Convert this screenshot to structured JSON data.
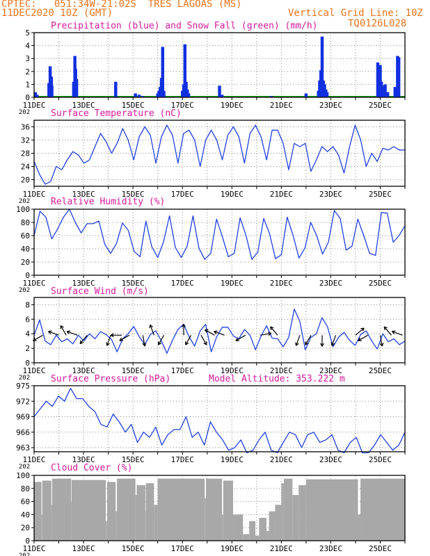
{
  "header": {
    "line1": "CPTEC:   051:34W-21:02S  TRES LAGOAS (MS)",
    "line2": "11DEC2020 10Z (GMT)",
    "grid_note": "Vertical Grid Line: 10Z",
    "model_code": "TQ0126L028"
  },
  "colors": {
    "header": "#e8731a",
    "titles": "#d61a9a",
    "precip": "#1030e0",
    "snow": "#10a010",
    "line": "#2040e0",
    "cloud": "#a8a8a8",
    "arrow": "#000000"
  },
  "x_axis": {
    "ticks": [
      "11DEC",
      "13DEC",
      "15DEC",
      "17DEC",
      "19DEC",
      "21DEC",
      "23DEC",
      "25DEC"
    ],
    "year_fragment": "202"
  },
  "chart_data": [
    {
      "type": "bar",
      "title": "Precipitation (blue) and Snow Fall (green) (mm/h)",
      "ylim": [
        0,
        5
      ],
      "yticks": [
        "0",
        "1",
        "2",
        "3",
        "4",
        "5"
      ],
      "x_unit": "days since 11DEC 00Z",
      "series": [
        {
          "name": "Precipitation",
          "color": "#1030e0",
          "points": [
            [
              0.05,
              0.4
            ],
            [
              0.12,
              0.2
            ],
            [
              0.6,
              1.1
            ],
            [
              0.65,
              2.4
            ],
            [
              0.7,
              1.6
            ],
            [
              0.72,
              0.9
            ],
            [
              1.6,
              1.2
            ],
            [
              1.65,
              3.2
            ],
            [
              1.68,
              2.2
            ],
            [
              1.72,
              1.4
            ],
            [
              3.3,
              1.2
            ],
            [
              4.1,
              0.3
            ],
            [
              4.25,
              0.2
            ],
            [
              4.4,
              0.1
            ],
            [
              5.0,
              0.3
            ],
            [
              5.05,
              0.5
            ],
            [
              5.1,
              0.8
            ],
            [
              5.15,
              1.5
            ],
            [
              5.2,
              3.9
            ],
            [
              5.25,
              0.5
            ],
            [
              6.0,
              0.5
            ],
            [
              6.05,
              1.0
            ],
            [
              6.1,
              4.1
            ],
            [
              6.15,
              1.2
            ],
            [
              6.2,
              0.6
            ],
            [
              6.25,
              0.3
            ],
            [
              7.5,
              0.9
            ],
            [
              7.6,
              0.2
            ],
            [
              9.6,
              0.1
            ],
            [
              11.0,
              0.3
            ],
            [
              11.5,
              0.5
            ],
            [
              11.55,
              1.3
            ],
            [
              11.6,
              2.1
            ],
            [
              11.65,
              4.7
            ],
            [
              11.7,
              1.3
            ],
            [
              11.75,
              1.0
            ],
            [
              11.8,
              0.6
            ],
            [
              11.85,
              0.4
            ],
            [
              13.9,
              2.7
            ],
            [
              13.95,
              1.1
            ],
            [
              14.0,
              2.5
            ],
            [
              14.05,
              1.2
            ],
            [
              14.1,
              0.9
            ],
            [
              14.15,
              0.7
            ],
            [
              14.2,
              1.0
            ],
            [
              14.3,
              0.4
            ],
            [
              14.6,
              0.8
            ],
            [
              14.7,
              3.2
            ],
            [
              14.75,
              3.1
            ]
          ]
        },
        {
          "name": "Snow Fall",
          "color": "#10a010",
          "values": [
            0
          ]
        }
      ]
    },
    {
      "type": "line",
      "title": "Surface Temperature (nC)",
      "ylim": [
        18,
        38
      ],
      "yticks": [
        "20",
        "24",
        "28",
        "32",
        "36"
      ],
      "values": [
        25.5,
        21.5,
        18.6,
        19.5,
        24,
        23,
        26,
        28.5,
        27.5,
        25,
        26,
        30,
        34,
        31.5,
        28,
        31,
        35.5,
        32,
        26,
        33,
        36,
        33.5,
        25,
        33,
        36.5,
        33.5,
        25,
        34,
        35,
        32,
        24,
        32,
        35,
        32,
        26,
        33.5,
        36,
        33,
        25,
        34,
        36.5,
        33,
        26,
        35,
        35,
        31,
        23,
        31,
        30,
        31,
        22.5,
        26,
        30,
        28.5,
        30,
        27.5,
        22,
        30,
        36.5,
        32,
        24,
        28,
        25.5,
        29.5,
        29,
        30,
        29,
        29
      ]
    },
    {
      "type": "line",
      "title": "Relative Humidity (%)",
      "ylim": [
        0,
        100
      ],
      "yticks": [
        "0",
        "20",
        "40",
        "60",
        "80",
        "100"
      ],
      "values": [
        60,
        97,
        88,
        55,
        70,
        88,
        100,
        80,
        64,
        78,
        78,
        82,
        47,
        33,
        48,
        79,
        68,
        36,
        28,
        82,
        43,
        27,
        51,
        90,
        42,
        27,
        44,
        90,
        41,
        24,
        33,
        85,
        58,
        28,
        33,
        87,
        60,
        24,
        35,
        86,
        63,
        25,
        31,
        88,
        60,
        26,
        41,
        80,
        60,
        32,
        50,
        98,
        86,
        38,
        44,
        85,
        60,
        33,
        30,
        95,
        94,
        50,
        60,
        75
      ]
    },
    {
      "type": "line",
      "title": "Surface Wind (m/s)",
      "ylim": [
        0,
        9
      ],
      "yticks": [
        "0",
        "2",
        "4",
        "6",
        "8"
      ],
      "values": [
        3.8,
        5.9,
        3,
        2.5,
        3.8,
        2.9,
        3.3,
        2.6,
        3.8,
        3,
        4,
        3.3,
        4.3,
        3.9,
        3.2,
        1.5,
        3.3,
        4,
        5,
        3.6,
        2.5,
        3.9,
        4.4,
        3,
        1.3,
        3.1,
        4.6,
        5.3,
        3.6,
        2.3,
        4.4,
        5.3,
        1.5,
        3.6,
        4.9,
        4.9,
        3.7,
        3.3,
        4.6,
        3.8,
        1.8,
        3.7,
        5.1,
        3.4,
        3.3,
        2.2,
        3.5,
        7.4,
        5.7,
        1.8,
        3.5,
        4,
        6.2,
        5,
        2.2,
        3.5,
        4.2,
        3.1,
        2.4,
        3.9,
        4.4,
        3,
        1.9,
        4,
        2.9,
        3.3,
        2.5,
        3
      ],
      "wind_arrows": [
        [
          0.35,
          150
        ],
        [
          1.0,
          200
        ],
        [
          1.3,
          240
        ],
        [
          1.75,
          200
        ],
        [
          2.15,
          130
        ],
        [
          3.1,
          110
        ],
        [
          3.55,
          180
        ],
        [
          3.85,
          150
        ],
        [
          4.4,
          80
        ],
        [
          4.85,
          250
        ],
        [
          5.25,
          120
        ],
        [
          6.05,
          270
        ],
        [
          6.35,
          120
        ],
        [
          6.75,
          60
        ],
        [
          7.3,
          210
        ],
        [
          7.7,
          200
        ],
        [
          8.55,
          150
        ],
        [
          9.15,
          350
        ],
        [
          9.85,
          230
        ],
        [
          10.75,
          110
        ],
        [
          11.2,
          120
        ],
        [
          11.65,
          90
        ],
        [
          12.2,
          110
        ],
        [
          13.0,
          320
        ],
        [
          13.5,
          150
        ],
        [
          14.0,
          80
        ],
        [
          14.45,
          230
        ],
        [
          14.9,
          200
        ]
      ]
    },
    {
      "type": "line",
      "title": "Surface Pressure (hPa)",
      "annotation": "Model Altitude: 353.222 m",
      "ylim": [
        962.2,
        975
      ],
      "yticks": [
        "963",
        "966",
        "969",
        "972",
        "975"
      ],
      "values": [
        969,
        970.5,
        972,
        971,
        973,
        972,
        974.5,
        972.5,
        972.5,
        971,
        970,
        967.5,
        967,
        969.5,
        968,
        966,
        967.5,
        964,
        966,
        965,
        967,
        963.5,
        965.5,
        966.5,
        966.5,
        969,
        965,
        966,
        963.5,
        968,
        966,
        964.5,
        962.5,
        963,
        964.5,
        962,
        962.5,
        964.5,
        966,
        962.5,
        962,
        964,
        966,
        965.5,
        963,
        965.5,
        966,
        964,
        964.5,
        965.5,
        962.5,
        962,
        964,
        965,
        962,
        962,
        963.5,
        965.5,
        964,
        962.5,
        963.5,
        966
      ]
    },
    {
      "type": "area",
      "title": "Cloud Cover (%)",
      "ylim": [
        0,
        100
      ],
      "yticks": [
        "0",
        "20",
        "40",
        "60",
        "80",
        "100"
      ],
      "color": "#a8a8a8",
      "x_unit": "days since 11DEC 00Z",
      "segments": [
        [
          0.0,
          0.3,
          90
        ],
        [
          0.3,
          0.33,
          40
        ],
        [
          0.33,
          0.7,
          92
        ],
        [
          0.7,
          0.73,
          55
        ],
        [
          0.73,
          1.5,
          95
        ],
        [
          1.5,
          1.52,
          60
        ],
        [
          1.52,
          2.9,
          93
        ],
        [
          2.9,
          2.95,
          30
        ],
        [
          2.95,
          3.3,
          90
        ],
        [
          3.3,
          3.35,
          45
        ],
        [
          3.35,
          4.1,
          95
        ],
        [
          4.1,
          4.15,
          70
        ],
        [
          4.15,
          4.5,
          85
        ],
        [
          4.5,
          4.52,
          45
        ],
        [
          4.52,
          4.85,
          88
        ],
        [
          4.85,
          5.0,
          55
        ],
        [
          5.0,
          6.9,
          95
        ],
        [
          6.9,
          6.95,
          65
        ],
        [
          6.95,
          7.6,
          95
        ],
        [
          7.6,
          7.65,
          40
        ],
        [
          7.65,
          8.05,
          92
        ],
        [
          8.05,
          8.45,
          40
        ],
        [
          8.45,
          8.7,
          10
        ],
        [
          8.7,
          8.95,
          30
        ],
        [
          8.95,
          9.1,
          8
        ],
        [
          9.1,
          9.4,
          35
        ],
        [
          9.4,
          9.5,
          15
        ],
        [
          9.5,
          9.75,
          45
        ],
        [
          9.75,
          10.0,
          55
        ],
        [
          10.0,
          10.1,
          88
        ],
        [
          10.1,
          10.45,
          95
        ],
        [
          10.45,
          10.7,
          70
        ],
        [
          10.7,
          11.0,
          85
        ],
        [
          11.0,
          13.1,
          94
        ],
        [
          13.1,
          13.2,
          40
        ],
        [
          13.2,
          15.0,
          95
        ]
      ]
    }
  ]
}
